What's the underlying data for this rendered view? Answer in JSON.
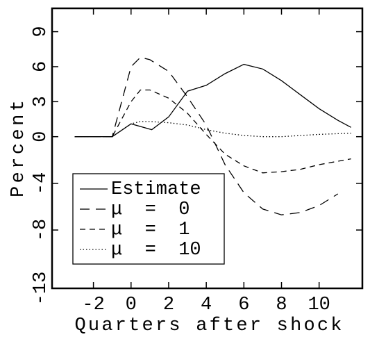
{
  "chart_data": {
    "type": "line",
    "xlabel": "Quarters after shock",
    "ylabel": "Percent",
    "xlim": [
      -4.2,
      12.3
    ],
    "xticks": [
      -2,
      0,
      2,
      4,
      6,
      8,
      10
    ],
    "ylim": [
      -13,
      11
    ],
    "yticks": [
      -13,
      -8,
      -4,
      0,
      3,
      6,
      9
    ],
    "legend": "lower-left",
    "series": [
      {
        "name": "Estimate",
        "color": "#000000",
        "dash": "solid",
        "x": [
          -3,
          -1,
          0,
          1.1,
          2,
          3,
          4,
          5,
          6,
          7,
          8,
          9,
          10,
          11,
          11.7
        ],
        "values": [
          0,
          0,
          1.1,
          0.6,
          1.7,
          3.9,
          4.4,
          5.4,
          6.2,
          5.8,
          4.8,
          3.6,
          2.4,
          1.4,
          0.8
        ]
      },
      {
        "name": "μ  =  0",
        "color": "#000000",
        "dash": "long-dash",
        "x": [
          -3,
          -1,
          0,
          0.5,
          1,
          2,
          3,
          4,
          5,
          6,
          7,
          8,
          9,
          10,
          11
        ],
        "values": [
          0,
          0,
          6.0,
          6.8,
          6.6,
          5.6,
          3.4,
          1.0,
          -2.4,
          -4.8,
          -6.2,
          -6.7,
          -6.5,
          -5.9,
          -4.9
        ]
      },
      {
        "name": "μ  =  1",
        "color": "#000000",
        "dash": "dash",
        "x": [
          -3,
          -1,
          0,
          0.5,
          1,
          2,
          3,
          4,
          5,
          6,
          7,
          8,
          9,
          10,
          11.7
        ],
        "values": [
          0,
          0,
          3.0,
          4.0,
          4.0,
          3.3,
          2.0,
          0.2,
          -1.5,
          -2.5,
          -3.1,
          -3.0,
          -2.8,
          -2.4,
          -1.9
        ]
      },
      {
        "name": "μ  =  10",
        "color": "#000000",
        "dash": "dot",
        "x": [
          -3,
          -1,
          0,
          0.5,
          1,
          2,
          3,
          4,
          5,
          6,
          7,
          8,
          9,
          10,
          11.7
        ],
        "values": [
          0,
          0,
          1.1,
          1.3,
          1.3,
          1.2,
          1.0,
          0.6,
          0.3,
          0.1,
          0.0,
          0.0,
          0.1,
          0.2,
          0.3
        ]
      }
    ]
  }
}
